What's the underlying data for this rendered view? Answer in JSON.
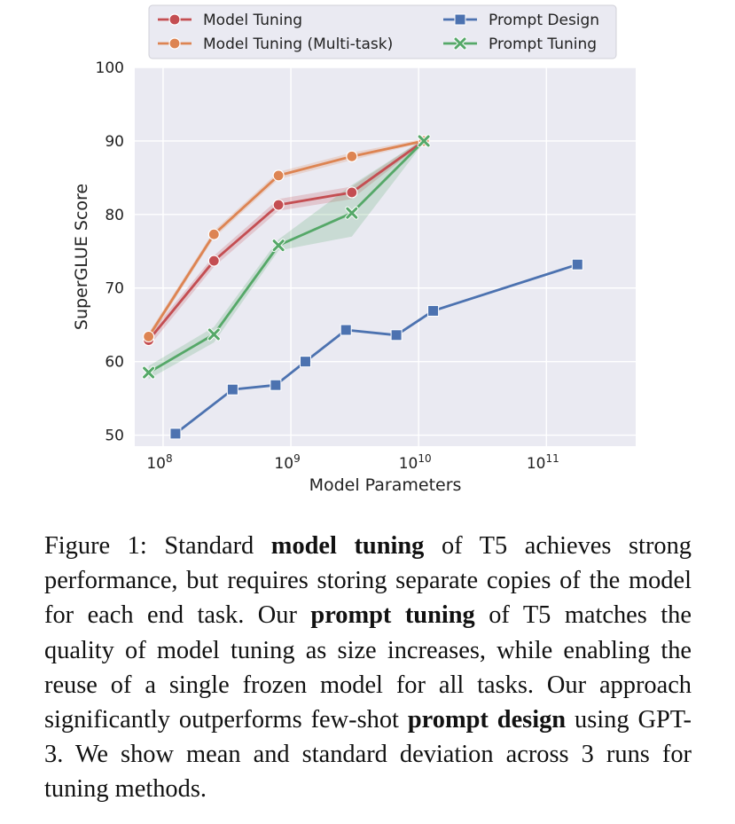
{
  "chart_data": {
    "type": "line",
    "xscale": "log",
    "xlabel": "Model Parameters",
    "ylabel": "SuperGLUE Score",
    "xlim": [
      60000000,
      500000000000
    ],
    "ylim": [
      48.5,
      100
    ],
    "xticks": [
      {
        "value": 100000000,
        "base": "10",
        "exp": "8"
      },
      {
        "value": 1000000000,
        "base": "10",
        "exp": "9"
      },
      {
        "value": 10000000000,
        "base": "10",
        "exp": "10"
      },
      {
        "value": 100000000000,
        "base": "10",
        "exp": "11"
      }
    ],
    "yticks": [
      50,
      60,
      70,
      80,
      90,
      100
    ],
    "grid": true,
    "legend_position": "top",
    "series": [
      {
        "name": "Model Tuning",
        "color": "#c44e52",
        "marker": "circle",
        "x": [
          77000000,
          250000000,
          800000000,
          3000000000,
          11000000000
        ],
        "y": [
          62.9,
          73.7,
          81.3,
          83.0,
          90.0
        ],
        "band_lower": [
          62.0,
          72.9,
          80.5,
          82.1,
          89.8
        ],
        "band_upper": [
          63.6,
          74.4,
          82.1,
          83.8,
          90.3
        ]
      },
      {
        "name": "Model Tuning (Multi-task)",
        "color": "#dd8452",
        "marker": "circle",
        "x": [
          77000000,
          250000000,
          800000000,
          3000000000,
          11000000000
        ],
        "y": [
          63.4,
          77.3,
          85.3,
          87.9,
          90.0
        ],
        "band_lower": [
          62.9,
          76.8,
          84.8,
          87.4,
          89.8
        ],
        "band_upper": [
          63.9,
          77.8,
          85.8,
          88.4,
          90.3
        ]
      },
      {
        "name": "Prompt Design",
        "color": "#4c72b0",
        "marker": "square",
        "x": [
          125000000,
          350000000,
          760000000,
          1300000000,
          2700000000,
          6700000000,
          13000000000,
          175000000000
        ],
        "y": [
          50.2,
          56.2,
          56.8,
          60.0,
          64.3,
          63.6,
          66.9,
          73.2
        ]
      },
      {
        "name": "Prompt Tuning",
        "color": "#55a868",
        "marker": "x",
        "x": [
          77000000,
          250000000,
          800000000,
          3000000000,
          11000000000
        ],
        "y": [
          58.5,
          63.7,
          75.8,
          80.2,
          90.0
        ],
        "band_lower": [
          57.6,
          62.6,
          75.1,
          77.0,
          89.8
        ],
        "band_upper": [
          59.4,
          64.7,
          76.6,
          84.0,
          90.3
        ]
      }
    ]
  },
  "caption": {
    "label": "Figure 1:",
    "t1": " Standard ",
    "b1": "model tuning",
    "t2": " of T5 achieves strong performance, but requires storing separate copies of the model for each end task.  Our ",
    "b2": "prompt tuning",
    "t3": " of T5 matches the quality of model tuning as size increases, while enabling the reuse of a single frozen model for all tasks. Our approach significantly outperforms few-shot ",
    "b3": "prompt design",
    "t4": " using GPT-3. We show mean and standard deviation across 3 runs for tuning methods."
  }
}
